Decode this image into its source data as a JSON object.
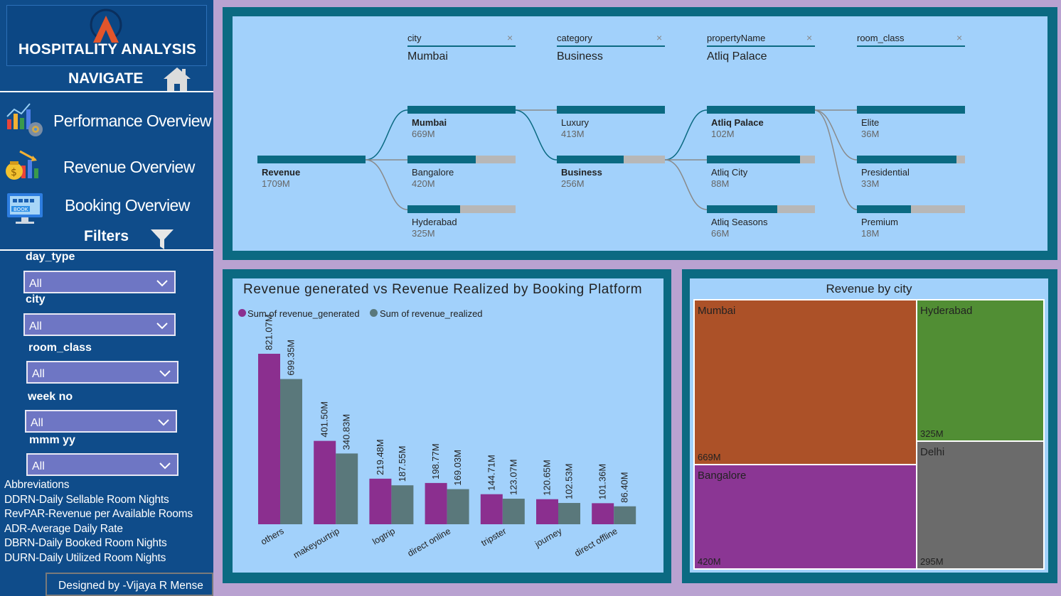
{
  "app": {
    "title": "HOSPITALITY ANALYSIS",
    "navigate_label": "NAVIGATE",
    "filters_label": "Filters",
    "credit": "Designed by -Vijaya R Mense"
  },
  "nav": [
    {
      "label": "Performance Overview",
      "icon": "performance-chart-icon"
    },
    {
      "label": "Revenue Overview",
      "icon": "revenue-money-icon"
    },
    {
      "label": "Booking Overview",
      "icon": "booking-monitor-icon"
    }
  ],
  "filters": [
    {
      "label": "day_type",
      "value": "All"
    },
    {
      "label": "city",
      "value": "All"
    },
    {
      "label": "room_class",
      "value": "All"
    },
    {
      "label": "week no",
      "value": "All"
    },
    {
      "label": "mmm yy",
      "value": "All"
    }
  ],
  "abbreviations": {
    "title": "Abbreviations",
    "items": [
      "DDRN-Daily Sellable Room Nights",
      "RevPAR-Revenue per Available Rooms",
      "ADR-Average Daily Rate",
      "DBRN-Daily Booked Room Nights",
      "DURN-Daily Utilized Room Nights"
    ]
  },
  "decomposition": {
    "headers": [
      {
        "field": "city",
        "value": "Mumbai"
      },
      {
        "field": "category",
        "value": "Business"
      },
      {
        "field": "propertyName",
        "value": "Atliq Palace"
      },
      {
        "field": "room_class",
        "value": ""
      }
    ],
    "root": {
      "name": "Revenue",
      "value": "1709M",
      "fraction": 1.0
    },
    "levels": [
      [
        {
          "name": "Mumbai",
          "value": "669M",
          "fraction": 1.0,
          "selected": true
        },
        {
          "name": "Bangalore",
          "value": "420M",
          "fraction": 0.63,
          "selected": false
        },
        {
          "name": "Hyderabad",
          "value": "325M",
          "fraction": 0.49,
          "selected": false
        }
      ],
      [
        {
          "name": "Luxury",
          "value": "413M",
          "fraction": 1.0,
          "selected": false
        },
        {
          "name": "Business",
          "value": "256M",
          "fraction": 0.62,
          "selected": true
        }
      ],
      [
        {
          "name": "Atliq Palace",
          "value": "102M",
          "fraction": 1.0,
          "selected": true
        },
        {
          "name": "Atliq City",
          "value": "88M",
          "fraction": 0.86,
          "selected": false
        },
        {
          "name": "Atliq Seasons",
          "value": "66M",
          "fraction": 0.65,
          "selected": false
        }
      ],
      [
        {
          "name": "Elite",
          "value": "36M",
          "fraction": 1.0,
          "selected": false
        },
        {
          "name": "Presidential",
          "value": "33M",
          "fraction": 0.92,
          "selected": false
        },
        {
          "name": "Premium",
          "value": "18M",
          "fraction": 0.5,
          "selected": false
        }
      ]
    ]
  },
  "bar_chart": {
    "title": "Revenue generated vs Revenue Realized by Booking Platform",
    "legend": [
      {
        "name": "Sum of revenue_generated",
        "color": "#8b2f8f"
      },
      {
        "name": "Sum of revenue_realized",
        "color": "#5a787b"
      }
    ]
  },
  "treemap": {
    "title": "Revenue by city",
    "cells": [
      {
        "name": "Mumbai",
        "value": "669M",
        "color": "#ac5128"
      },
      {
        "name": "Hyderabad",
        "value": "325M",
        "color": "#518e34"
      },
      {
        "name": "Bangalore",
        "value": "420M",
        "color": "#8b3694"
      },
      {
        "name": "Delhi",
        "value": "295M",
        "color": "#6b6b6b"
      }
    ]
  },
  "chart_data": {
    "type": "bar",
    "title": "Revenue generated vs Revenue Realized by Booking Platform",
    "categories": [
      "others",
      "makeyourtrip",
      "logtrip",
      "direct online",
      "tripster",
      "journey",
      "direct offline"
    ],
    "series": [
      {
        "name": "Sum of revenue_generated",
        "values": [
          821.07,
          401.5,
          219.48,
          198.77,
          144.71,
          120.65,
          101.36
        ],
        "labels": [
          "821.07M",
          "401.50M",
          "219.48M",
          "198.77M",
          "144.71M",
          "120.65M",
          "101.36M"
        ],
        "color": "#8b2f8f"
      },
      {
        "name": "Sum of revenue_realized",
        "values": [
          699.35,
          340.83,
          187.55,
          169.03,
          123.07,
          102.53,
          86.4
        ],
        "labels": [
          "699.35M",
          "340.83M",
          "187.55M",
          "169.03M",
          "123.07M",
          "102.53M",
          "86.40M"
        ],
        "color": "#5a787b"
      }
    ],
    "ylim": [
      0,
      821.07
    ],
    "grid": false,
    "legend": "top-left"
  }
}
